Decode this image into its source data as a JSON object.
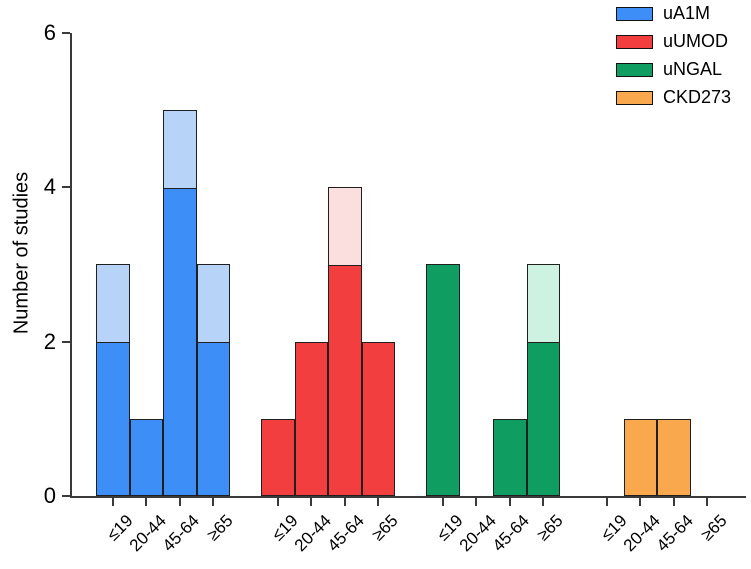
{
  "chart_data": {
    "type": "bar",
    "title": "",
    "xlabel": "",
    "ylabel": "Number of studies",
    "ylim": [
      0,
      6
    ],
    "yticks": [
      0,
      2,
      4,
      6
    ],
    "categories": [
      "≤19",
      "20-44",
      "45-64",
      "≥65"
    ],
    "series": [
      {
        "name": "uA1M",
        "color": "#3E8EF7",
        "light_color": "#B8D3F8",
        "solid": [
          2,
          1,
          4,
          2
        ],
        "light": [
          1,
          0,
          1,
          1
        ]
      },
      {
        "name": "uUMOD",
        "color": "#F23E3E",
        "light_color": "#FBDEDE",
        "solid": [
          1,
          2,
          3,
          2
        ],
        "light": [
          0,
          0,
          1,
          0
        ]
      },
      {
        "name": "uNGAL",
        "color": "#0F9D62",
        "light_color": "#CDF2E1",
        "solid": [
          3,
          0,
          1,
          2
        ],
        "light": [
          0,
          0,
          0,
          1
        ]
      },
      {
        "name": "CKD273",
        "color": "#FAA84E",
        "light_color": "#FDE4C8",
        "solid": [
          0,
          1,
          1,
          0
        ],
        "light": [
          0,
          0,
          0,
          0
        ]
      }
    ],
    "legend": {
      "position": "top-right",
      "entries": [
        "uA1M",
        "uUMOD",
        "uNGAL",
        "CKD273"
      ]
    },
    "grid": false,
    "x_tick_rotation": 45
  }
}
